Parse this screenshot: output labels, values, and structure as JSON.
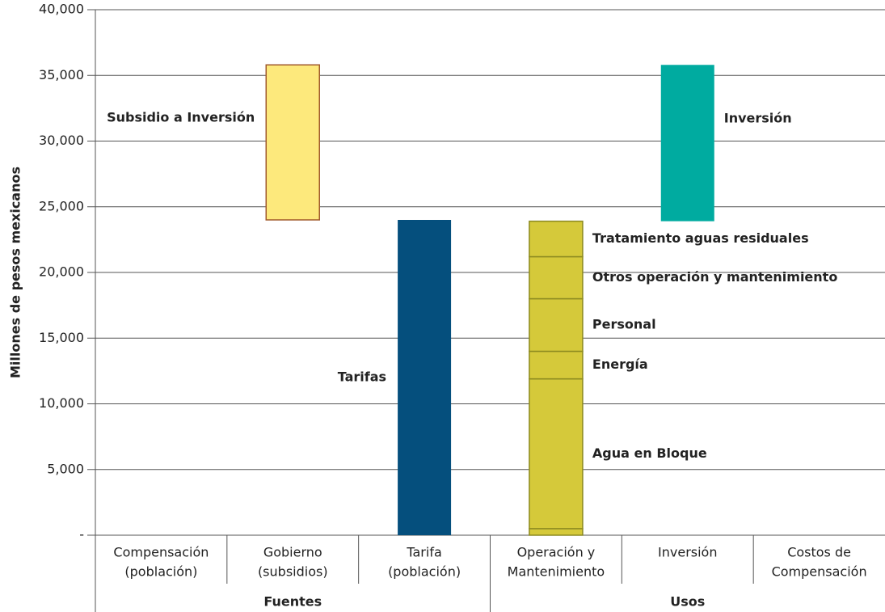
{
  "chart_data": {
    "type": "floating_bar",
    "y_label": "Millones de pesos mexicanos",
    "ylim": [
      0,
      40000
    ],
    "yticks": [
      {
        "value": 0,
        "label": "-"
      },
      {
        "value": 5000,
        "label": "5,000"
      },
      {
        "value": 10000,
        "label": "10,000"
      },
      {
        "value": 15000,
        "label": "15,000"
      },
      {
        "value": 20000,
        "label": "20,000"
      },
      {
        "value": 25000,
        "label": "25,000"
      },
      {
        "value": 30000,
        "label": "30,000"
      },
      {
        "value": 35000,
        "label": "35,000"
      },
      {
        "value": 40000,
        "label": "40,000"
      }
    ],
    "grid": true,
    "categories": [
      [
        "Compensación",
        "(población)"
      ],
      [
        "Gobierno",
        "(subsidios)"
      ],
      [
        "Tarifa",
        "(población)"
      ],
      [
        "Operación y",
        "Mantenimiento"
      ],
      [
        "Inversión"
      ],
      [
        "Costos de",
        "Compensación"
      ]
    ],
    "groups": [
      {
        "name": "Fuentes",
        "size": 3
      },
      {
        "name": "Usos",
        "size": 3
      }
    ],
    "bars": [
      {
        "category": 1,
        "start": 24000,
        "color": "#fde97c",
        "border": "#a05a2c",
        "label_side": "left",
        "segments": [
          {
            "name": "Subsidio a Inversión",
            "value": 11800
          }
        ]
      },
      {
        "category": 2,
        "start": 0,
        "color": "#054f7d",
        "label_side": "left",
        "segments": [
          {
            "name": "Tarifas",
            "value": 24000
          }
        ]
      },
      {
        "category": 3,
        "start": 0,
        "color": "#d5c93a",
        "border": "#8c8a20",
        "label_side": "right",
        "segments": [
          {
            "value": 500
          },
          {
            "name": "Agua en Bloque",
            "value": 11400
          },
          {
            "name": "Energía",
            "value": 2100
          },
          {
            "name": "Personal",
            "value": 4000
          },
          {
            "name": "Otros operación y mantenimiento",
            "value": 3200
          },
          {
            "name": "Tratamiento aguas residuales",
            "value": 2700
          }
        ]
      },
      {
        "category": 4,
        "start": 23900,
        "color": "#00aba0",
        "label_side": "right",
        "segments": [
          {
            "name": "Inversión",
            "value": 11900
          }
        ]
      }
    ]
  }
}
